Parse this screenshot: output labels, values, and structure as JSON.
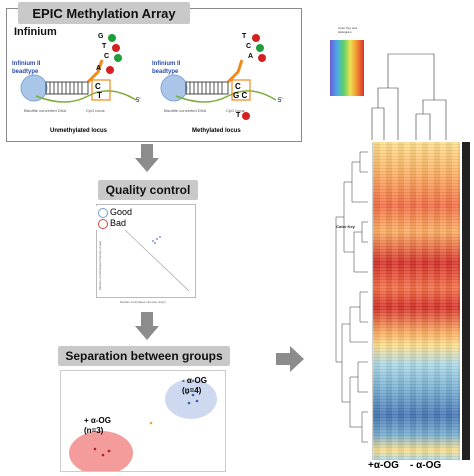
{
  "epic": {
    "title": "EPIC Methylation Array",
    "subtitle": "Infinium",
    "left_bead_label": "Infinium II beadtype",
    "right_bead_label": "Infinium II beadtype",
    "left_locus_caption": "Unmethylated locus",
    "right_locus_caption": "Methylated locus",
    "dna_label": "Bisulfite converted DNA",
    "cpg_label": "CpG locus",
    "five_prime": "5'",
    "left_bases": [
      "G",
      "T",
      "C",
      "A"
    ],
    "left_core": [
      "C",
      "T"
    ],
    "right_bases": [
      "T",
      "C",
      "A",
      "T"
    ],
    "right_core": [
      "C",
      "G C"
    ],
    "colors": {
      "green": "#1e9e3a",
      "red": "#d42020",
      "orange": "#f08a1c",
      "bead": "#a9c6e8"
    }
  },
  "qc": {
    "title": "Quality control",
    "legend": [
      "Good",
      "Bad"
    ],
    "xlabel": "Median methylated intensity (log2)",
    "ylabel": "Median unmethylated intensity (log2)"
  },
  "sep": {
    "title": "Separation between groups",
    "group_minus": "- α-OG",
    "group_minus_n": "(n=4)",
    "group_plus": "+ α-OG",
    "group_plus_n": "(n=3)"
  },
  "heatmap": {
    "color_key_title": "Color Key and Histogram",
    "color_key_label": "Color Key",
    "x_labels": [
      "+α-OG",
      "- α-OG"
    ],
    "colors": {
      "high": "#d73027",
      "mid": "#fee08b",
      "low": "#4575b4",
      "plus_bar": "#ffffff",
      "minus_bar": "#222222"
    }
  }
}
